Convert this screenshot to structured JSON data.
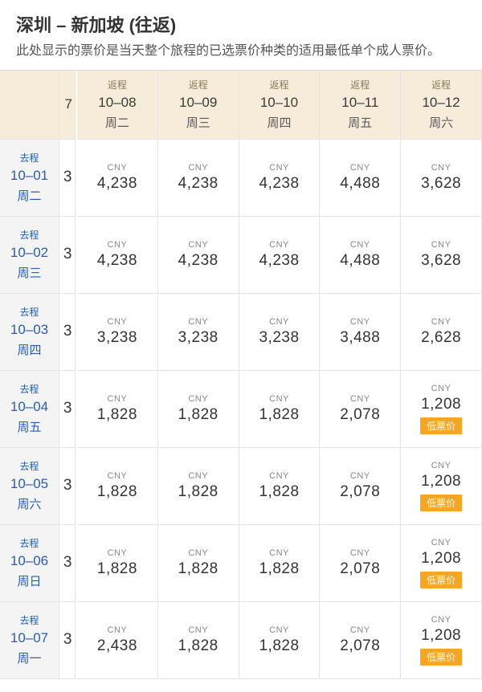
{
  "header": {
    "title": "深圳 – 新加坡 (往返)",
    "subtitle": "此处显示的票价是当天整个旅程的已选票价种类的适用最低单个成人票价。"
  },
  "labels": {
    "return_leg": "返程",
    "depart_leg": "去程",
    "currency": "CNY",
    "low_fare_badge": "低票价"
  },
  "return_partial": {
    "date_stub": "7"
  },
  "return_cols": [
    {
      "date": "10–08",
      "dow": "周二"
    },
    {
      "date": "10–09",
      "dow": "周三"
    },
    {
      "date": "10–10",
      "dow": "周四"
    },
    {
      "date": "10–11",
      "dow": "周五"
    },
    {
      "date": "10–12",
      "dow": "周六"
    }
  ],
  "depart_rows": [
    {
      "date": "10–01",
      "dow": "周二",
      "partial_stub": "3",
      "prices": [
        "4,238",
        "4,238",
        "4,238",
        "4,488",
        "3,628"
      ],
      "low": [
        false,
        false,
        false,
        false,
        false
      ]
    },
    {
      "date": "10–02",
      "dow": "周三",
      "partial_stub": "3",
      "prices": [
        "4,238",
        "4,238",
        "4,238",
        "4,488",
        "3,628"
      ],
      "low": [
        false,
        false,
        false,
        false,
        false
      ]
    },
    {
      "date": "10–03",
      "dow": "周四",
      "partial_stub": "3",
      "prices": [
        "3,238",
        "3,238",
        "3,238",
        "3,488",
        "2,628"
      ],
      "low": [
        false,
        false,
        false,
        false,
        false
      ]
    },
    {
      "date": "10–04",
      "dow": "周五",
      "partial_stub": "3",
      "prices": [
        "1,828",
        "1,828",
        "1,828",
        "2,078",
        "1,208"
      ],
      "low": [
        false,
        false,
        false,
        false,
        true
      ]
    },
    {
      "date": "10–05",
      "dow": "周六",
      "partial_stub": "3",
      "prices": [
        "1,828",
        "1,828",
        "1,828",
        "2,078",
        "1,208"
      ],
      "low": [
        false,
        false,
        false,
        false,
        true
      ]
    },
    {
      "date": "10–06",
      "dow": "周日",
      "partial_stub": "3",
      "prices": [
        "1,828",
        "1,828",
        "1,828",
        "2,078",
        "1,208"
      ],
      "low": [
        false,
        false,
        false,
        false,
        true
      ]
    },
    {
      "date": "10–07",
      "dow": "周一",
      "partial_stub": "3",
      "prices": [
        "2,438",
        "1,828",
        "1,828",
        "2,078",
        "1,208"
      ],
      "low": [
        false,
        false,
        false,
        false,
        true
      ]
    }
  ],
  "style": {
    "col_head_bg": "#f7ecd9",
    "row_head_bg": "#f4f4f4",
    "badge_bg": "#f5a623",
    "badge_text": "#ffffff",
    "row_head_color": "#2a5db0",
    "border_color": "#e5e5e5",
    "currency_color": "#888888",
    "price_color": "#333333"
  }
}
